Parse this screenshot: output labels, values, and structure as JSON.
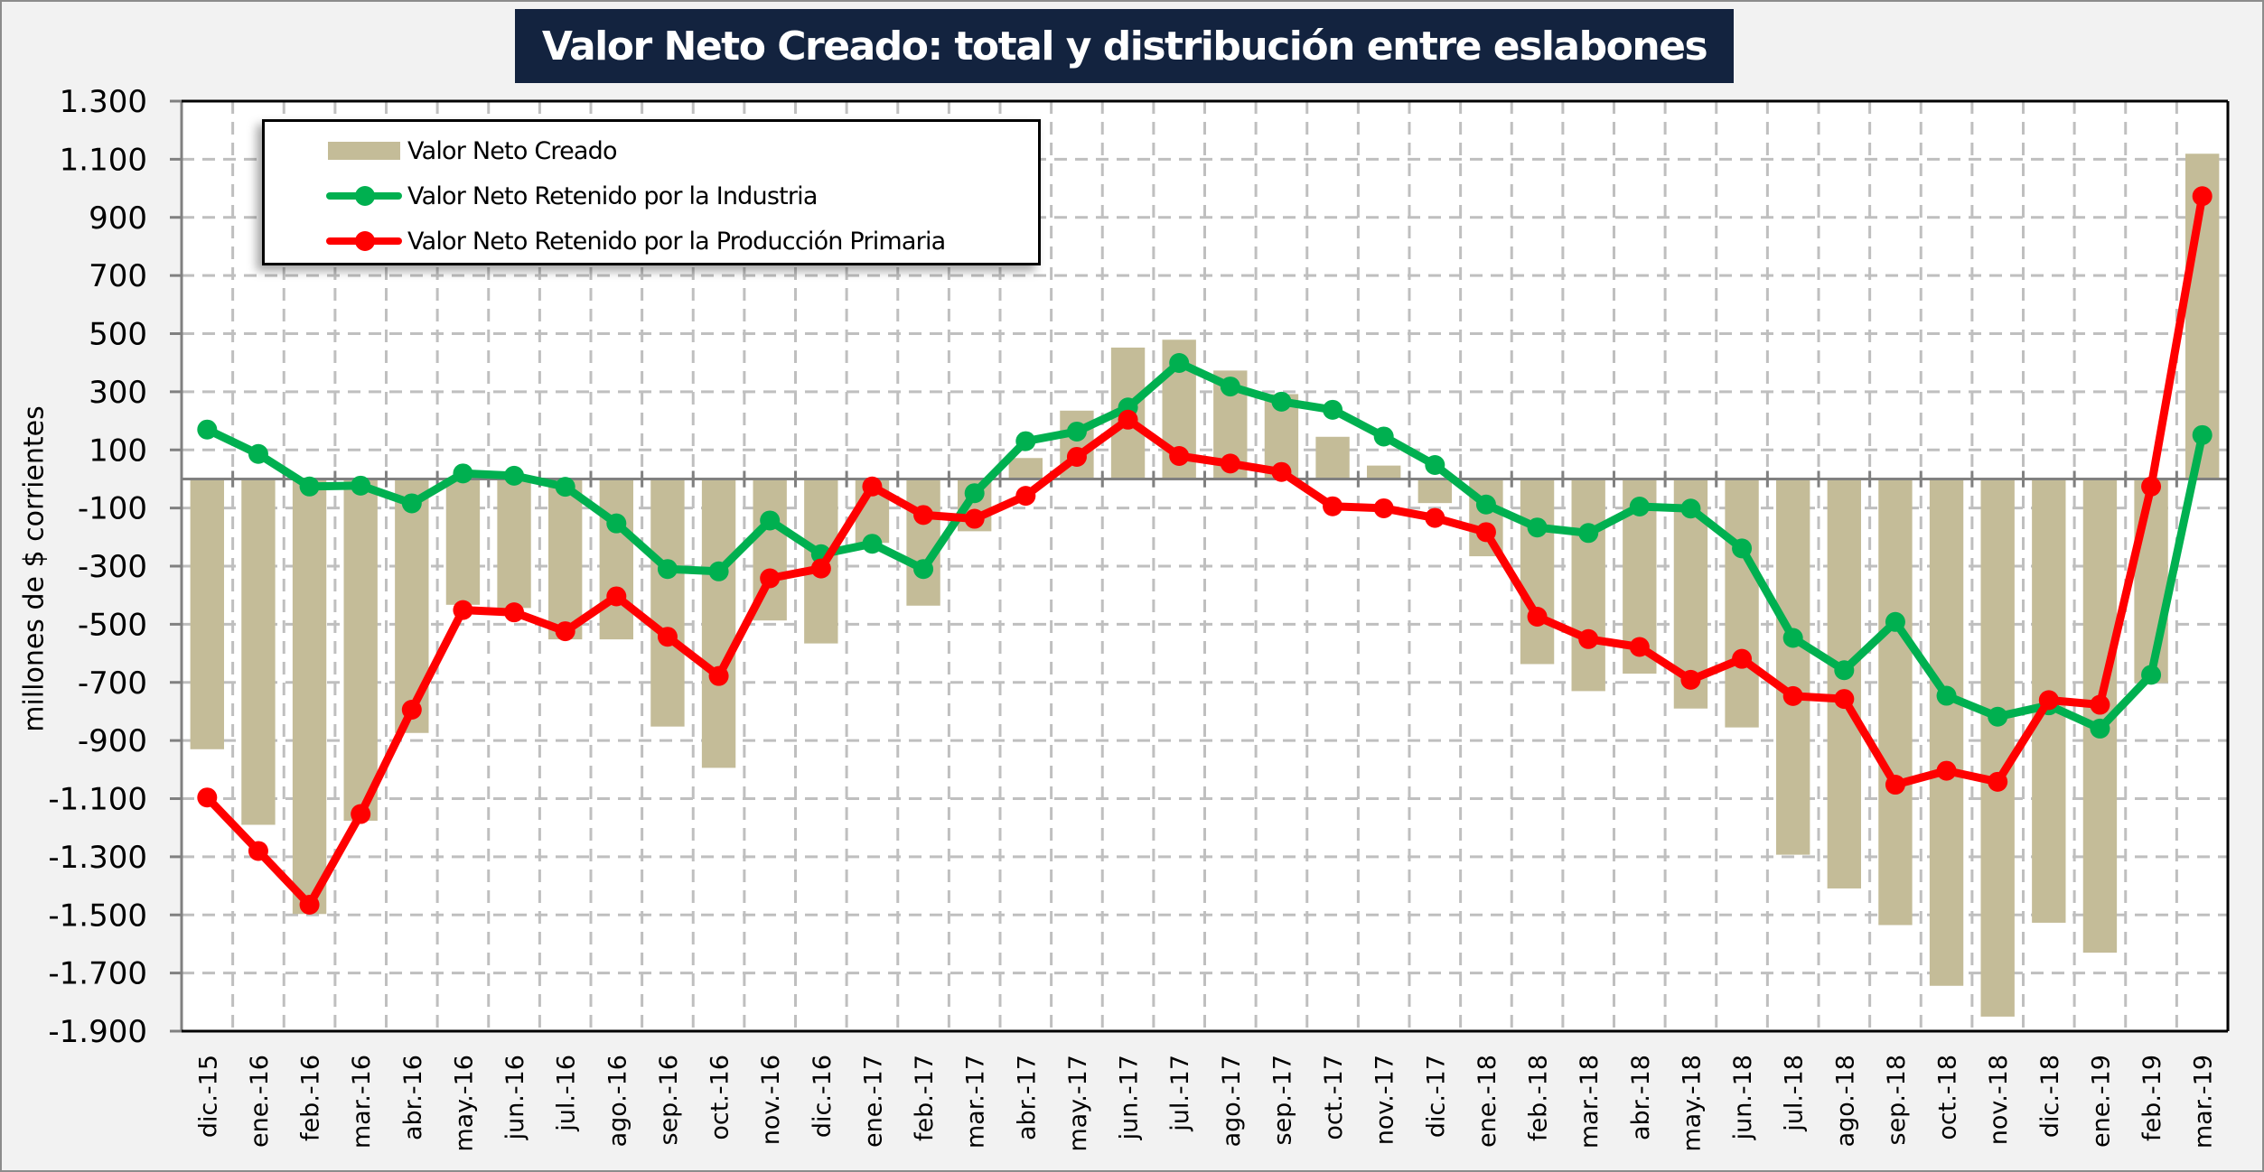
{
  "chart_data": {
    "type": "bar",
    "title": "Valor Neto Creado: total y distribución entre eslabones",
    "xlabel": "",
    "ylabel": "millones de $ corrientes",
    "ylim": [
      -1900,
      1300
    ],
    "ytick_step": 200,
    "yticks": [
      "1.300",
      "1.100",
      "900",
      "700",
      "500",
      "300",
      "100",
      "-100",
      "-300",
      "-500",
      "-700",
      "-900",
      "-1.100",
      "-1.300",
      "-1.500",
      "-1.700",
      "-1.900"
    ],
    "ytick_values": [
      1300,
      1100,
      900,
      700,
      500,
      300,
      100,
      -100,
      -300,
      -500,
      -700,
      -900,
      -1100,
      -1300,
      -1500,
      -1700,
      -1900
    ],
    "grid": true,
    "legend_position": "top-left",
    "categories": [
      "dic.-15",
      "ene.-16",
      "feb.-16",
      "mar.-16",
      "abr.-16",
      "may.-16",
      "jun.-16",
      "jul.-16",
      "ago.-16",
      "sep.-16",
      "oct.-16",
      "nov.-16",
      "dic.-16",
      "ene.-17",
      "feb.-17",
      "mar.-17",
      "abr.-17",
      "may.-17",
      "jun.-17",
      "jul.-17",
      "ago.-17",
      "sep.-17",
      "oct.-17",
      "nov.-17",
      "dic.-17",
      "ene.-18",
      "feb.-18",
      "mar.-18",
      "abr.-18",
      "may.-18",
      "jun.-18",
      "jul.-18",
      "ago.-18",
      "sep.-18",
      "oct.-18",
      "nov.-18",
      "dic.-18",
      "ene.-19",
      "feb.-19",
      "mar.-19"
    ],
    "series": [
      {
        "name": "Valor Neto Creado",
        "kind": "bar",
        "color": "#c4bc98",
        "values": [
          -930,
          -1190,
          -1497,
          -1176,
          -874,
          -433,
          -444,
          -552,
          -552,
          -852,
          -994,
          -487,
          -566,
          -220,
          -436,
          -180,
          72,
          235,
          452,
          479,
          373,
          292,
          145,
          46,
          -83,
          -266,
          -637,
          -730,
          -670,
          -790,
          -855,
          -1293,
          -1409,
          -1535,
          -1744,
          -1850,
          -1527,
          -1630,
          -702,
          1119
        ]
      },
      {
        "name": "Valor Neto Retenido por la Industria",
        "kind": "line",
        "color": "#00b050",
        "values": [
          170,
          86,
          -26,
          -23,
          -84,
          19,
          11,
          -27,
          -153,
          -310,
          -318,
          -143,
          -259,
          -223,
          -310,
          -49,
          130,
          163,
          246,
          399,
          318,
          266,
          238,
          146,
          48,
          -88,
          -167,
          -186,
          -95,
          -102,
          -239,
          -547,
          -658,
          -492,
          -746,
          -818,
          -779,
          -859,
          -674,
          151
        ]
      },
      {
        "name": "Valor Neto Retenido por la Producción Primaria",
        "kind": "line",
        "color": "#ff0000",
        "values": [
          -1096,
          -1280,
          -1465,
          -1153,
          -794,
          -451,
          -459,
          -524,
          -404,
          -543,
          -678,
          -342,
          -308,
          -26,
          -124,
          -137,
          -58,
          76,
          204,
          79,
          53,
          24,
          -94,
          -101,
          -134,
          -183,
          -474,
          -551,
          -578,
          -691,
          -619,
          -747,
          -757,
          -1052,
          -1004,
          -1042,
          -761,
          -777,
          -26,
          973
        ]
      }
    ]
  },
  "colors": {
    "title_bg": "#13233f",
    "title_text": "#ffffff",
    "background": "#f2f2f2",
    "plot_bg": "#ffffff",
    "grid": "#bfbfbf",
    "zero_line": "#808080"
  }
}
